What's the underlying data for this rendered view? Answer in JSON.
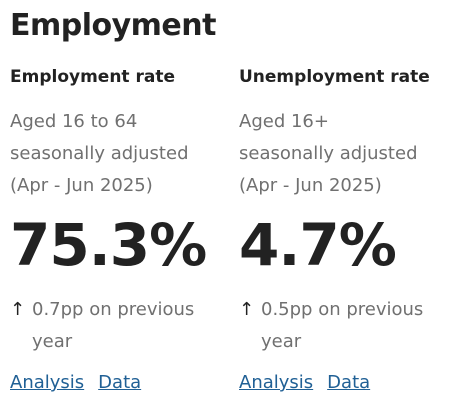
{
  "title": "Employment",
  "cards": [
    {
      "heading": "Employment rate",
      "description": "Aged 16 to 64 seasonally adjusted (Apr - Jun 2025)",
      "value": "75.3%",
      "change": "0.7pp on previous year",
      "links": [
        "Analysis",
        "Data"
      ]
    },
    {
      "heading": "Unemployment rate",
      "description": "Aged 16+ seasonally adjusted (Apr - Jun 2025)",
      "value": "4.7%",
      "change": "0.5pp on previous year",
      "links": [
        "Analysis",
        "Data"
      ]
    }
  ]
}
